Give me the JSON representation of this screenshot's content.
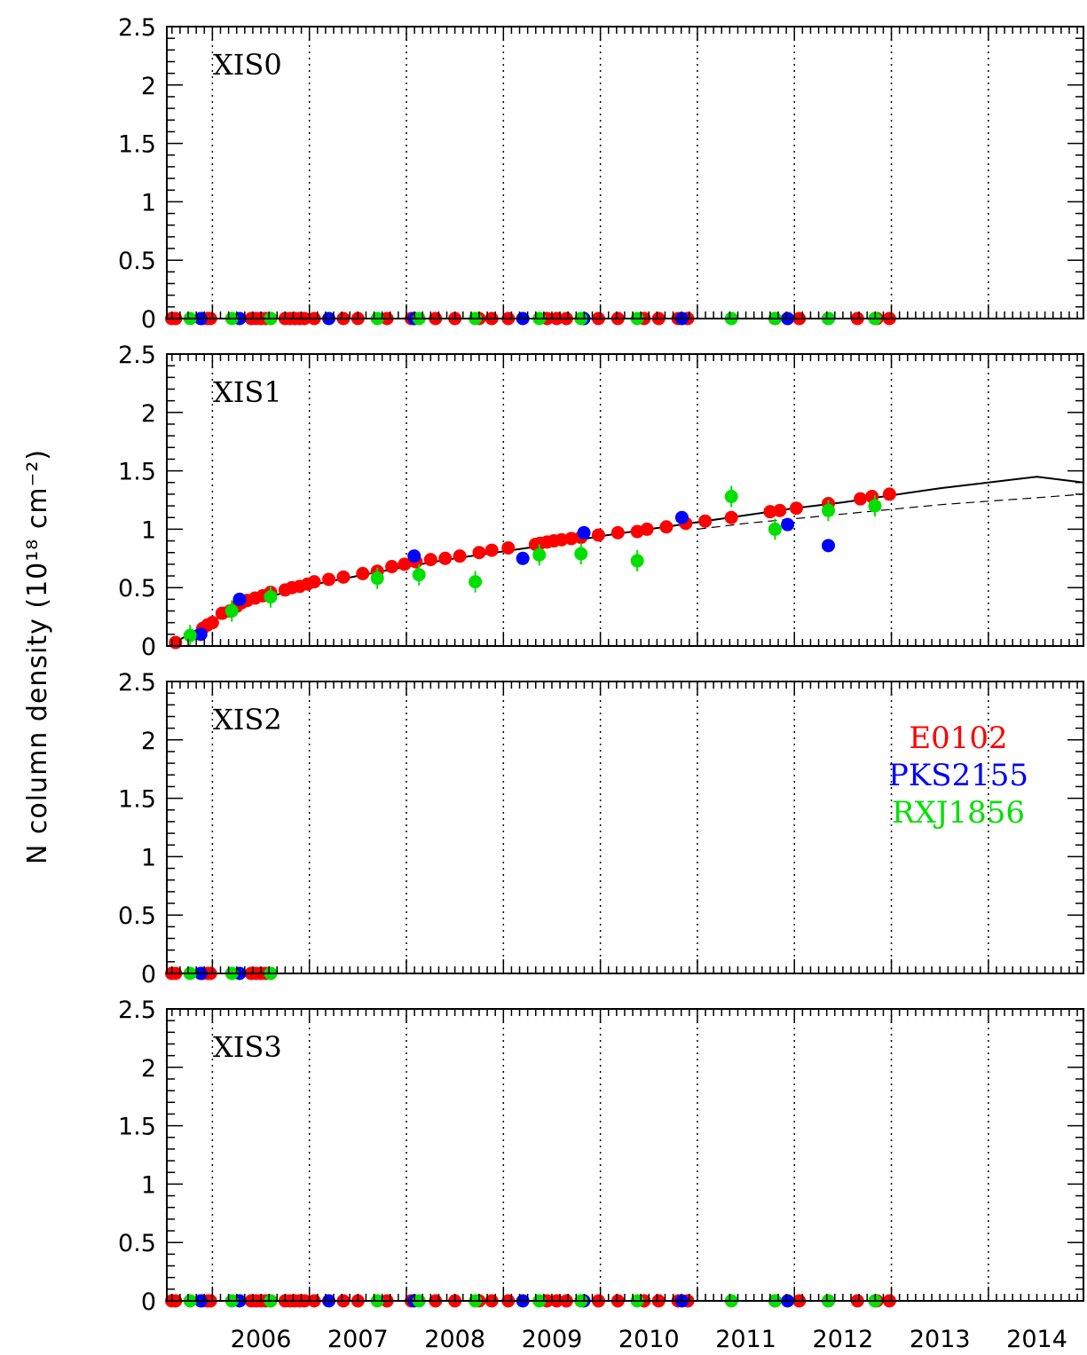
{
  "chart_data": {
    "type": "scatter",
    "ylabel": "N column density (10¹⁸ cm⁻²)",
    "x_ticks": [
      "2006",
      "2007",
      "2008",
      "2009",
      "2010",
      "2011",
      "2012",
      "2013",
      "2014"
    ],
    "x_range": [
      2005.03,
      2014.48
    ],
    "ylim": [
      0,
      2.5
    ],
    "y_ticks": [
      "0",
      "0.5",
      "1",
      "1.5",
      "2",
      "2.5"
    ],
    "grid": "vertical dotted lines at year boundaries",
    "legend": {
      "placement": "right, third panel",
      "entries": [
        {
          "name": "E0102",
          "color": "#ff0000"
        },
        {
          "name": "PKS2155",
          "color": "#0000ff"
        },
        {
          "name": "RXJ1856",
          "color": "#00e000"
        }
      ]
    },
    "panels": [
      {
        "label": "XIS0",
        "data_zero": true
      },
      {
        "label": "XIS1",
        "series": [
          {
            "name": "E0102",
            "color": "#ff0000",
            "points": [
              [
                2005.12,
                0.03
              ],
              [
                2005.4,
                0.15
              ],
              [
                2005.45,
                0.18
              ],
              [
                2005.5,
                0.2
              ],
              [
                2005.6,
                0.28
              ],
              [
                2005.68,
                0.3
              ],
              [
                2005.75,
                0.34
              ],
              [
                2005.8,
                0.37
              ],
              [
                2005.86,
                0.39
              ],
              [
                2005.94,
                0.41
              ],
              [
                2006.02,
                0.43
              ],
              [
                2006.1,
                0.46
              ],
              [
                2006.25,
                0.48
              ],
              [
                2006.32,
                0.5
              ],
              [
                2006.4,
                0.51
              ],
              [
                2006.48,
                0.53
              ],
              [
                2006.55,
                0.55
              ],
              [
                2006.7,
                0.57
              ],
              [
                2006.85,
                0.59
              ],
              [
                2007.05,
                0.62
              ],
              [
                2007.2,
                0.64
              ],
              [
                2007.35,
                0.68
              ],
              [
                2007.48,
                0.7
              ],
              [
                2007.6,
                0.72
              ],
              [
                2007.75,
                0.74
              ],
              [
                2007.9,
                0.75
              ],
              [
                2008.05,
                0.77
              ],
              [
                2008.25,
                0.8
              ],
              [
                2008.38,
                0.82
              ],
              [
                2008.55,
                0.84
              ],
              [
                2008.83,
                0.87
              ],
              [
                2008.88,
                0.88
              ],
              [
                2008.95,
                0.89
              ],
              [
                2009.02,
                0.9
              ],
              [
                2009.1,
                0.91
              ],
              [
                2009.2,
                0.92
              ],
              [
                2009.3,
                0.93
              ],
              [
                2009.48,
                0.95
              ],
              [
                2009.68,
                0.97
              ],
              [
                2009.88,
                0.98
              ],
              [
                2009.98,
                1.0
              ],
              [
                2010.18,
                1.02
              ],
              [
                2010.38,
                1.05
              ],
              [
                2010.58,
                1.07
              ],
              [
                2010.85,
                1.1
              ],
              [
                2011.25,
                1.15
              ],
              [
                2011.35,
                1.16
              ],
              [
                2011.52,
                1.18
              ],
              [
                2011.85,
                1.22
              ],
              [
                2012.18,
                1.26
              ],
              [
                2012.3,
                1.28
              ],
              [
                2012.48,
                1.3
              ]
            ]
          },
          {
            "name": "PKS2155",
            "color": "#0000ff",
            "points": [
              [
                2005.38,
                0.1
              ],
              [
                2005.78,
                0.4
              ],
              [
                2007.58,
                0.77
              ],
              [
                2008.7,
                0.75
              ],
              [
                2009.33,
                0.97
              ],
              [
                2010.34,
                1.1
              ],
              [
                2011.43,
                1.04
              ],
              [
                2011.85,
                0.86
              ]
            ]
          },
          {
            "name": "RXJ1856",
            "color": "#00e000",
            "points": [
              [
                2005.27,
                0.09
              ],
              [
                2005.7,
                0.3
              ],
              [
                2006.1,
                0.42
              ],
              [
                2007.2,
                0.58
              ],
              [
                2007.63,
                0.61
              ],
              [
                2008.21,
                0.55
              ],
              [
                2008.87,
                0.78
              ],
              [
                2009.3,
                0.79
              ],
              [
                2009.88,
                0.73
              ],
              [
                2010.85,
                1.28
              ],
              [
                2011.3,
                1.0
              ],
              [
                2011.85,
                1.16
              ],
              [
                2012.33,
                1.2
              ]
            ]
          }
        ],
        "fit_solid": [
          [
            2005.05,
            0.0
          ],
          [
            2005.3,
            0.12
          ],
          [
            2005.6,
            0.26
          ],
          [
            2006.0,
            0.4
          ],
          [
            2006.5,
            0.52
          ],
          [
            2007.0,
            0.6
          ],
          [
            2007.5,
            0.68
          ],
          [
            2008.0,
            0.75
          ],
          [
            2008.5,
            0.81
          ],
          [
            2009.0,
            0.87
          ],
          [
            2009.5,
            0.94
          ],
          [
            2010.0,
            1.0
          ],
          [
            2010.5,
            1.06
          ],
          [
            2011.0,
            1.12
          ],
          [
            2011.5,
            1.18
          ],
          [
            2012.0,
            1.23
          ],
          [
            2012.5,
            1.29
          ],
          [
            2013.0,
            1.35
          ],
          [
            2013.5,
            1.4
          ],
          [
            2014.0,
            1.45
          ],
          [
            2014.48,
            1.4
          ]
        ],
        "fit_dashed": [
          [
            2010.5,
            1.0
          ],
          [
            2011.0,
            1.05
          ],
          [
            2011.5,
            1.09
          ],
          [
            2012.0,
            1.13
          ],
          [
            2012.5,
            1.17
          ],
          [
            2013.0,
            1.21
          ],
          [
            2013.5,
            1.24
          ],
          [
            2014.0,
            1.27
          ],
          [
            2014.48,
            1.3
          ]
        ]
      },
      {
        "label": "XIS2",
        "data_zero": true,
        "xmax": 2006.15
      },
      {
        "label": "XIS3",
        "data_zero": true
      }
    ],
    "zero_points": {
      "E0102": [
        2005.08,
        2005.12,
        2005.4,
        2005.45,
        2005.48,
        2005.9,
        2005.95,
        2006.0,
        2006.05,
        2006.1,
        2006.25,
        2006.3,
        2006.35,
        2006.4,
        2006.45,
        2006.55,
        2006.85,
        2007.0,
        2007.3,
        2007.55,
        2007.8,
        2008.0,
        2008.25,
        2008.38,
        2008.55,
        2008.95,
        2009.05,
        2009.15,
        2009.48,
        2009.68,
        2009.95,
        2010.1,
        2010.3,
        2010.4,
        2011.3,
        2011.55,
        2012.15,
        2012.35,
        2012.48
      ],
      "PKS2155": [
        2005.38,
        2005.78,
        2006.7,
        2007.58,
        2008.7,
        2009.33,
        2010.34,
        2011.43,
        2011.85
      ],
      "RXJ1856": [
        2005.27,
        2005.7,
        2006.1,
        2007.2,
        2007.63,
        2008.21,
        2008.87,
        2009.3,
        2009.88,
        2010.85,
        2011.3,
        2011.85,
        2012.33
      ]
    }
  }
}
